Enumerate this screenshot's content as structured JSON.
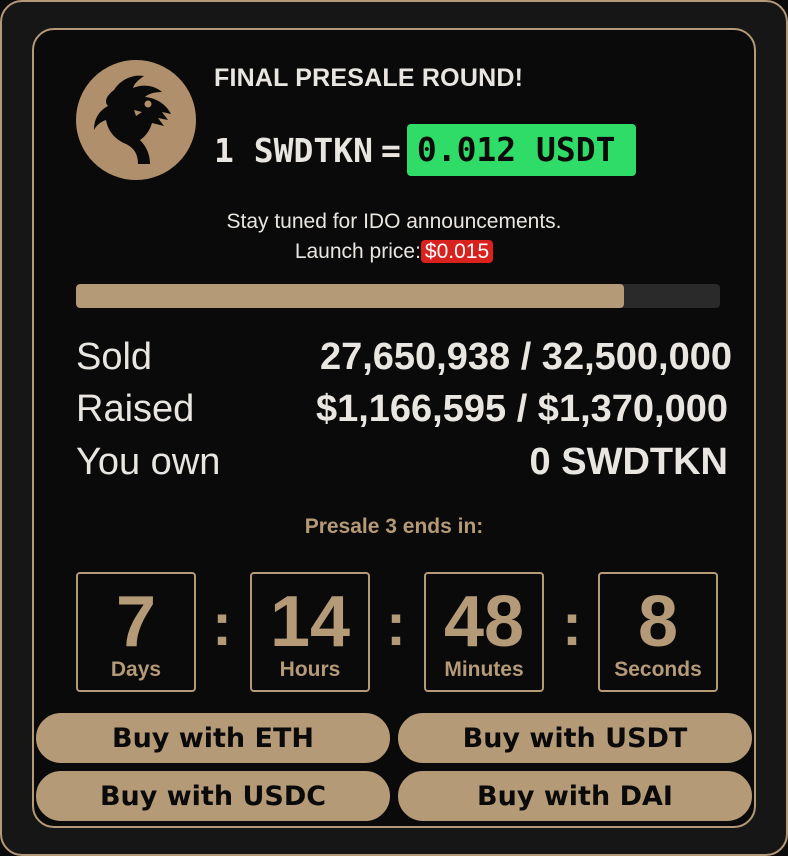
{
  "header": {
    "headline": "FINAL PRESALE ROUND!",
    "rate_left": "1 SWDTKN",
    "rate_eq": "=",
    "rate_price": "0.012 USDT"
  },
  "notice": {
    "tuned": "Stay tuned for IDO announcements.",
    "launch_label": "Launch price:",
    "launch_price": "$0.015"
  },
  "progress": {
    "fraction": 0.8507
  },
  "stats": {
    "sold_label": "Sold",
    "sold_value": "27,650,938 / 32,500,000",
    "raised_label": "Raised",
    "raised_value": "$1,166,595 / $1,370,000",
    "own_label": "You own",
    "own_value": "0 SWDTKN"
  },
  "countdown": {
    "title": "Presale 3 ends in:",
    "days": "7",
    "days_label": "Days",
    "hours": "14",
    "hours_label": "Hours",
    "minutes": "48",
    "minutes_label": "Minutes",
    "seconds": "8",
    "seconds_label": "Seconds",
    "separator": ":"
  },
  "buttons": {
    "eth": "Buy with ETH",
    "usdt": "Buy with USDT",
    "usdc": "Buy with USDC",
    "dai": "Buy with DAI"
  },
  "colors": {
    "accent": "#b59a78",
    "price_badge": "#2fdc67",
    "launch_badge": "#d9211e",
    "background": "#0a0a0a"
  },
  "icons": {
    "logo": "dragon-logo-icon"
  }
}
